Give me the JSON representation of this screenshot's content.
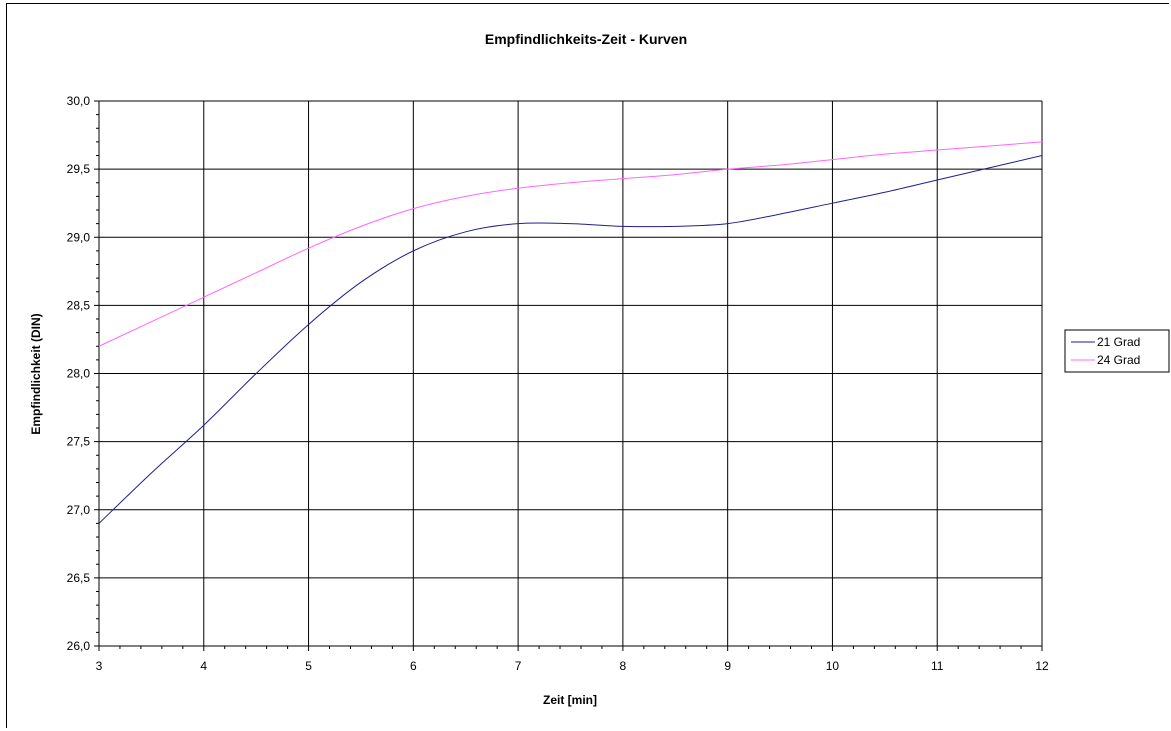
{
  "chart_data": {
    "type": "line",
    "title": "Empfindlichkeits-Zeit - Kurven",
    "xlabel": "Zeit [min]",
    "ylabel": "Empfindlichkeit (DIN)",
    "xlim": [
      3,
      12
    ],
    "ylim": [
      26.0,
      30.0
    ],
    "xticks": [
      3,
      4,
      5,
      6,
      7,
      8,
      9,
      10,
      11,
      12
    ],
    "xtick_labels": [
      "3",
      "4",
      "5",
      "6",
      "7",
      "8",
      "9",
      "10",
      "11",
      "12"
    ],
    "yticks": [
      26.0,
      26.5,
      27.0,
      27.5,
      28.0,
      28.5,
      29.0,
      29.5,
      30.0
    ],
    "ytick_labels": [
      "26,0",
      "26,5",
      "27,0",
      "27,5",
      "28,0",
      "28,5",
      "29,0",
      "29,5",
      "30,0"
    ],
    "grid": true,
    "legend_position": "right",
    "series": [
      {
        "name": "21 Grad",
        "color": "#1f1f8f",
        "x": [
          3,
          3.5,
          4,
          4.5,
          5,
          5.5,
          6,
          6.5,
          7,
          7.5,
          8,
          8.5,
          9,
          9.5,
          10,
          10.5,
          11,
          11.5,
          12
        ],
        "y": [
          26.9,
          27.27,
          27.62,
          28.0,
          28.36,
          28.67,
          28.9,
          29.04,
          29.1,
          29.1,
          29.08,
          29.08,
          29.1,
          29.17,
          29.25,
          29.33,
          29.42,
          29.51,
          29.6
        ]
      },
      {
        "name": "24 Grad",
        "color": "#ff66ff",
        "x": [
          3,
          3.5,
          4,
          4.5,
          5,
          5.5,
          6,
          6.5,
          7,
          7.5,
          8,
          8.5,
          9,
          9.5,
          10,
          10.5,
          11,
          11.5,
          12
        ],
        "y": [
          28.2,
          28.38,
          28.56,
          28.74,
          28.92,
          29.08,
          29.21,
          29.3,
          29.36,
          29.4,
          29.43,
          29.46,
          29.5,
          29.53,
          29.57,
          29.61,
          29.64,
          29.67,
          29.7
        ]
      }
    ]
  }
}
